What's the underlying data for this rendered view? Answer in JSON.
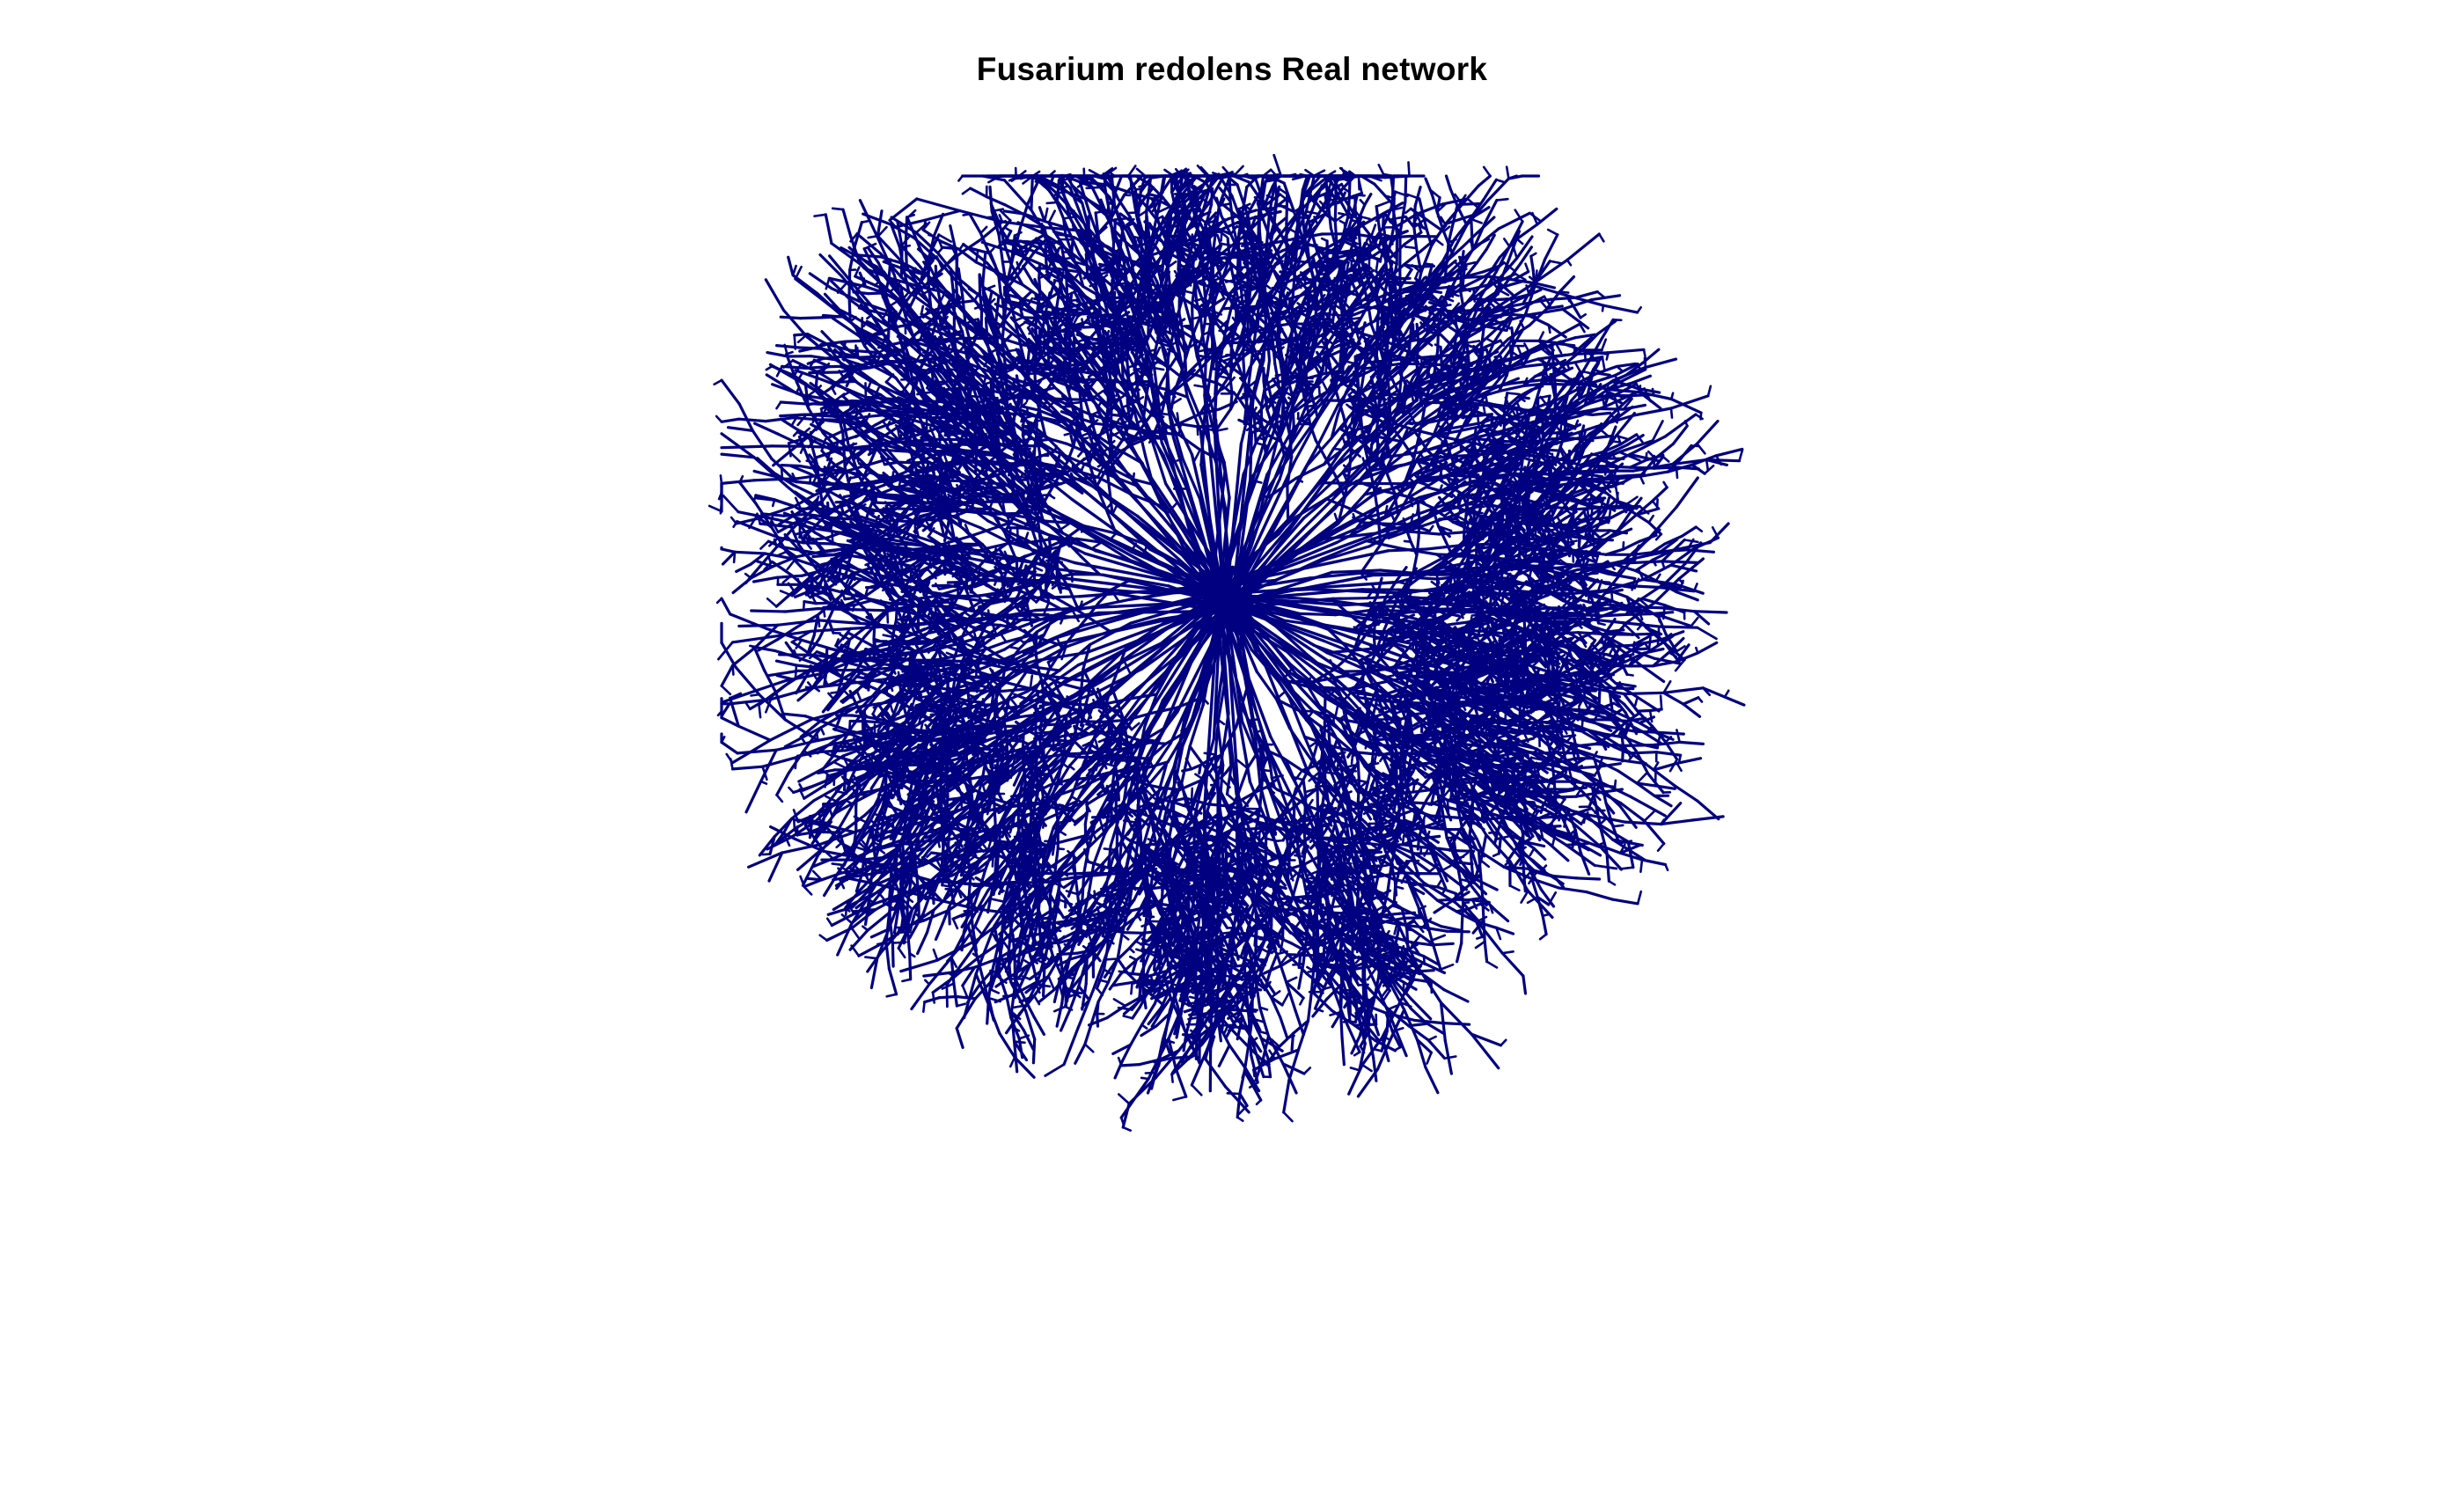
{
  "title": "Fusarium redolens Real network",
  "network": {
    "edge_color": "#000080",
    "background": "#ffffff",
    "layout": "radial mycelial network from a dense central hub"
  }
}
